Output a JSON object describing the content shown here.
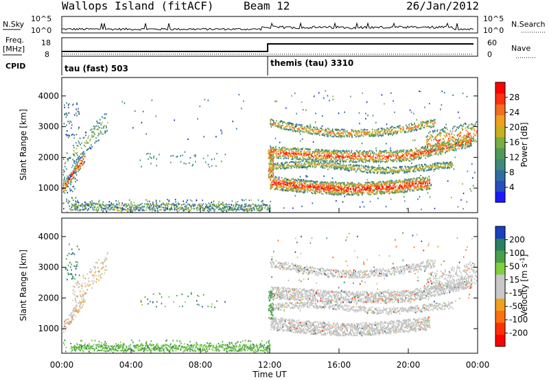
{
  "header": {
    "station": "Wallops Island (fitACF)",
    "beam": "Beam 12",
    "date": "26/Jan/2012"
  },
  "top_panels": {
    "nsky_label": "N.Sky",
    "nsky_ticks": [
      "10^5",
      "10^0"
    ],
    "nsearch_label": "N.Search",
    "freq_label": "Freq.",
    "freq_unit": "[MHz]",
    "freq_ticks": [
      "18",
      "8"
    ],
    "nave_label": "Nave",
    "nave_ticks": [
      "60",
      "0"
    ],
    "nsearch_ticks": [
      "10^5",
      "10^0"
    ],
    "cpid_label": "CPID",
    "cpid_1": "tau (fast) 503",
    "cpid_2": "themis (tau) 3310"
  },
  "chart_data": [
    {
      "type": "heatmap",
      "name": "power-panel",
      "xlabel": "",
      "ylabel": "Slant Range [km]",
      "yticks": [
        "1000",
        "2000",
        "3000",
        "4000"
      ],
      "ylim": [
        200,
        4600
      ],
      "colorbar_label": "Power [dB]",
      "colorbar_ticks": [
        "4",
        "8",
        "12",
        "16",
        "20",
        "24",
        "28"
      ],
      "colors": [
        "#1a1aff",
        "#1f4db8",
        "#2a7fa0",
        "#3d8a6a",
        "#5a9a55",
        "#8fb04a",
        "#e8b020",
        "#f08020",
        "#ff4010",
        "#ff0000"
      ]
    },
    {
      "type": "heatmap",
      "name": "velocity-panel",
      "xlabel": "Time UT",
      "ylabel": "Slant Range [km]",
      "yticks": [
        "1000",
        "2000",
        "3000",
        "4000"
      ],
      "ylim": [
        200,
        4600
      ],
      "xticks": [
        "00:00",
        "04:00",
        "08:00",
        "12:00",
        "16:00",
        "20:00",
        "00:00"
      ],
      "colorbar_label": "Velocity [m s^-1]",
      "colorbar_ticks": [
        "200",
        "100",
        "50",
        "15",
        "-15",
        "-50",
        "-100",
        "-200"
      ],
      "colors": [
        "#1a40c0",
        "#2a8060",
        "#4aa04a",
        "#80d040",
        "#c8c8c8",
        "#f0a020",
        "#ff6010",
        "#ff2000",
        "#ff0000"
      ]
    }
  ]
}
